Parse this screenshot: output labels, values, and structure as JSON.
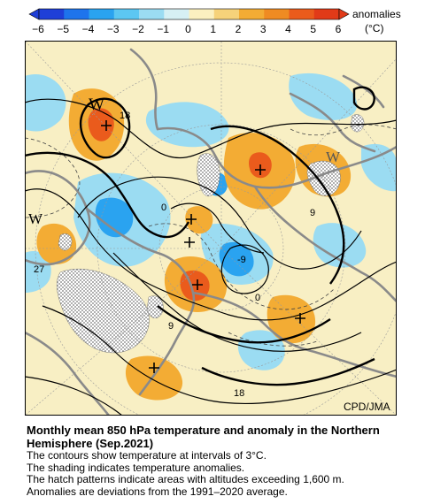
{
  "colorbar": {
    "ticks": [
      "−6",
      "−5",
      "−4",
      "−3",
      "−2",
      "−1",
      "0",
      "1",
      "2",
      "3",
      "4",
      "5",
      "6"
    ],
    "colors": [
      "#1f3fd8",
      "#1e74ec",
      "#2aa3f0",
      "#5cc7f2",
      "#9bdcf2",
      "#d6f0f4",
      "#fbf0c0",
      "#f6d27a",
      "#f3ac34",
      "#ef8b22",
      "#ea5b1c",
      "#e13a18"
    ],
    "label_line1": "anomalies",
    "label_line2": "(°C)"
  },
  "map": {
    "contour_labels": [
      "18",
      "0",
      "9",
      "-9",
      "0",
      "27",
      "9",
      "18"
    ],
    "high_markers": [
      "W",
      "W",
      "W"
    ],
    "credit": "CPD/JMA",
    "colors": {
      "background": "#f8efc4",
      "warm": "#f3ac34",
      "warm_strong": "#ea5b1c",
      "cool": "#9bdcf2",
      "cool_strong": "#2aa3f0",
      "coast": "#8a8a8a",
      "contour": "#000000"
    }
  },
  "caption": {
    "title_line1": "Monthly mean 850 hPa temperature and anomaly in the Northern",
    "title_line2": "Hemisphere (Sep.2021)",
    "lines": [
      "The contours show temperature at intervals of 3°C.",
      "The shading indicates temperature anomalies.",
      "The hatch patterns indicate areas with altitudes exceeding 1,600 m.",
      "Anomalies are deviations from the 1991–2020 average."
    ]
  }
}
